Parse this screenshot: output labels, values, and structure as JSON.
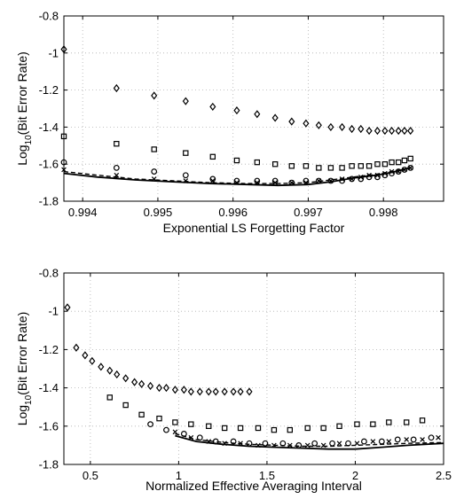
{
  "chart_data": [
    {
      "type": "scatter",
      "xlabel": "Exponential LS Forgetting Factor",
      "ylabel_base": "Log",
      "ylabel_sub": "10",
      "ylabel_rest": "(Bit Error Rate)",
      "xlim": [
        0.99375,
        0.9988
      ],
      "ylim": [
        -1.8,
        -0.8
      ],
      "xticks": [
        0.994,
        0.995,
        0.996,
        0.997,
        0.998
      ],
      "xtick_labels": [
        "0.994",
        "0.995",
        "0.996",
        "0.997",
        "0.998"
      ],
      "yticks": [
        -1.8,
        -1.6,
        -1.4,
        -1.2,
        -1.0,
        -0.8
      ],
      "ytick_labels": [
        "-1.8",
        "-1.6",
        "-1.4",
        "-1.2",
        "-1",
        "-0.8"
      ],
      "grid": true,
      "series": [
        {
          "marker": "diamond",
          "x": [
            0.99375,
            0.99445,
            0.99495,
            0.99537,
            0.99573,
            0.99605,
            0.99632,
            0.99656,
            0.99678,
            0.99697,
            0.99714,
            0.9973,
            0.99745,
            0.99758,
            0.9977,
            0.99781,
            0.99792,
            0.99802,
            0.99811,
            0.9982,
            0.99828,
            0.99836
          ],
          "y": [
            -0.98,
            -1.19,
            -1.23,
            -1.26,
            -1.29,
            -1.31,
            -1.33,
            -1.35,
            -1.37,
            -1.38,
            -1.39,
            -1.4,
            -1.4,
            -1.41,
            -1.41,
            -1.42,
            -1.42,
            -1.42,
            -1.42,
            -1.42,
            -1.42,
            -1.42
          ]
        },
        {
          "marker": "square",
          "x": [
            0.99375,
            0.99445,
            0.99495,
            0.99537,
            0.99573,
            0.99605,
            0.99632,
            0.99656,
            0.99678,
            0.99697,
            0.99714,
            0.9973,
            0.99745,
            0.99758,
            0.9977,
            0.99781,
            0.99792,
            0.99802,
            0.99811,
            0.9982,
            0.99828,
            0.99836
          ],
          "y": [
            -1.45,
            -1.49,
            -1.52,
            -1.54,
            -1.56,
            -1.58,
            -1.59,
            -1.6,
            -1.61,
            -1.61,
            -1.62,
            -1.62,
            -1.62,
            -1.61,
            -1.61,
            -1.61,
            -1.6,
            -1.6,
            -1.59,
            -1.59,
            -1.58,
            -1.57
          ]
        },
        {
          "marker": "circle",
          "x": [
            0.99375,
            0.99445,
            0.99495,
            0.99537,
            0.99573,
            0.99605,
            0.99632,
            0.99656,
            0.99678,
            0.99697,
            0.99714,
            0.9973,
            0.99745,
            0.99758,
            0.9977,
            0.99781,
            0.99792,
            0.99802,
            0.99811,
            0.9982,
            0.99828,
            0.99836
          ],
          "y": [
            -1.59,
            -1.62,
            -1.64,
            -1.66,
            -1.68,
            -1.69,
            -1.69,
            -1.69,
            -1.7,
            -1.69,
            -1.69,
            -1.69,
            -1.69,
            -1.68,
            -1.68,
            -1.67,
            -1.67,
            -1.66,
            -1.65,
            -1.64,
            -1.63,
            -1.62
          ]
        },
        {
          "marker": "x",
          "x": [
            0.99375,
            0.99445,
            0.99495,
            0.99537,
            0.99573,
            0.99605,
            0.99632,
            0.99656,
            0.99678,
            0.99697,
            0.99714,
            0.9973,
            0.99745,
            0.99758,
            0.9977,
            0.99781,
            0.99792,
            0.99802,
            0.99811,
            0.9982,
            0.99828,
            0.99836
          ],
          "y": [
            -1.63,
            -1.66,
            -1.68,
            -1.69,
            -1.69,
            -1.7,
            -1.7,
            -1.7,
            -1.7,
            -1.7,
            -1.69,
            -1.69,
            -1.68,
            -1.68,
            -1.67,
            -1.66,
            -1.66,
            -1.65,
            -1.64,
            -1.64,
            -1.63,
            -1.62
          ]
        },
        {
          "marker": "dashed-line",
          "x": [
            0.99375,
            0.9942,
            0.9947,
            0.9952,
            0.9957,
            0.9962,
            0.9966,
            0.997,
            0.9973,
            0.9976,
            0.9979,
            0.9981,
            0.99836
          ],
          "y": [
            -1.64,
            -1.66,
            -1.68,
            -1.69,
            -1.7,
            -1.705,
            -1.705,
            -1.7,
            -1.685,
            -1.67,
            -1.655,
            -1.64,
            -1.62
          ]
        },
        {
          "marker": "solid-line",
          "x": [
            0.99375,
            0.9942,
            0.9947,
            0.9952,
            0.9957,
            0.9962,
            0.9966,
            0.997,
            0.9973,
            0.9976,
            0.9979,
            0.9981,
            0.99836
          ],
          "y": [
            -1.65,
            -1.67,
            -1.685,
            -1.695,
            -1.705,
            -1.71,
            -1.715,
            -1.71,
            -1.695,
            -1.675,
            -1.66,
            -1.645,
            -1.62
          ]
        }
      ]
    },
    {
      "type": "scatter",
      "xlabel": "Normalized Effective Averaging Interval",
      "ylabel_base": "Log",
      "ylabel_sub": "10",
      "ylabel_rest": "(Bit Error Rate)",
      "xlim": [
        0.35,
        2.5
      ],
      "ylim": [
        -1.8,
        -0.8
      ],
      "xticks": [
        0.5,
        1.0,
        1.5,
        2.0,
        2.5
      ],
      "xtick_labels": [
        "0.5",
        "1",
        "1.5",
        "2",
        "2.5"
      ],
      "yticks": [
        -1.8,
        -1.6,
        -1.4,
        -1.2,
        -1.0,
        -0.8
      ],
      "ytick_labels": [
        "-1.8",
        "-1.6",
        "-1.4",
        "-1.2",
        "-1",
        "-0.8"
      ],
      "grid": true,
      "series": [
        {
          "marker": "diamond",
          "x": [
            0.37,
            0.42,
            0.47,
            0.51,
            0.56,
            0.61,
            0.65,
            0.7,
            0.75,
            0.79,
            0.84,
            0.89,
            0.93,
            0.98,
            1.03,
            1.07,
            1.12,
            1.17,
            1.21,
            1.26,
            1.31,
            1.35,
            1.4
          ],
          "y": [
            -0.98,
            -1.19,
            -1.23,
            -1.26,
            -1.29,
            -1.31,
            -1.33,
            -1.35,
            -1.37,
            -1.38,
            -1.39,
            -1.4,
            -1.4,
            -1.41,
            -1.41,
            -1.42,
            -1.42,
            -1.42,
            -1.42,
            -1.42,
            -1.42,
            -1.42,
            -1.42
          ]
        },
        {
          "marker": "square",
          "x": [
            0.61,
            0.7,
            0.79,
            0.89,
            0.98,
            1.07,
            1.17,
            1.26,
            1.35,
            1.45,
            1.54,
            1.63,
            1.73,
            1.82,
            1.91,
            2.01,
            2.1,
            2.19,
            2.29,
            2.38
          ],
          "y": [
            -1.45,
            -1.49,
            -1.54,
            -1.56,
            -1.58,
            -1.59,
            -1.6,
            -1.61,
            -1.61,
            -1.61,
            -1.62,
            -1.62,
            -1.61,
            -1.61,
            -1.6,
            -1.59,
            -1.59,
            -1.58,
            -1.58,
            -1.57
          ]
        },
        {
          "marker": "circle",
          "x": [
            0.84,
            0.93,
            1.03,
            1.12,
            1.21,
            1.31,
            1.4,
            1.49,
            1.59,
            1.68,
            1.77,
            1.87,
            1.96,
            2.05,
            2.15,
            2.24,
            2.33,
            2.43
          ],
          "y": [
            -1.59,
            -1.62,
            -1.64,
            -1.66,
            -1.68,
            -1.68,
            -1.69,
            -1.69,
            -1.69,
            -1.7,
            -1.69,
            -1.69,
            -1.69,
            -1.68,
            -1.68,
            -1.67,
            -1.67,
            -1.66
          ]
        },
        {
          "marker": "x",
          "x": [
            0.98,
            1.07,
            1.17,
            1.26,
            1.35,
            1.45,
            1.54,
            1.63,
            1.73,
            1.82,
            1.91,
            2.01,
            2.1,
            2.19,
            2.29,
            2.38,
            2.47
          ],
          "y": [
            -1.63,
            -1.66,
            -1.68,
            -1.69,
            -1.69,
            -1.7,
            -1.7,
            -1.7,
            -1.7,
            -1.7,
            -1.69,
            -1.69,
            -1.68,
            -1.68,
            -1.67,
            -1.67,
            -1.66
          ]
        },
        {
          "marker": "dashed-line",
          "x": [
            0.98,
            1.1,
            1.25,
            1.4,
            1.55,
            1.7,
            1.85,
            2.0,
            2.15,
            2.3,
            2.5
          ],
          "y": [
            -1.64,
            -1.67,
            -1.685,
            -1.695,
            -1.7,
            -1.705,
            -1.705,
            -1.7,
            -1.695,
            -1.69,
            -1.685
          ]
        },
        {
          "marker": "solid-line",
          "x": [
            0.98,
            1.1,
            1.25,
            1.4,
            1.55,
            1.7,
            1.85,
            2.0,
            2.15,
            2.3,
            2.5
          ],
          "y": [
            -1.65,
            -1.68,
            -1.695,
            -1.705,
            -1.71,
            -1.715,
            -1.72,
            -1.72,
            -1.71,
            -1.7,
            -1.69
          ]
        }
      ]
    }
  ]
}
